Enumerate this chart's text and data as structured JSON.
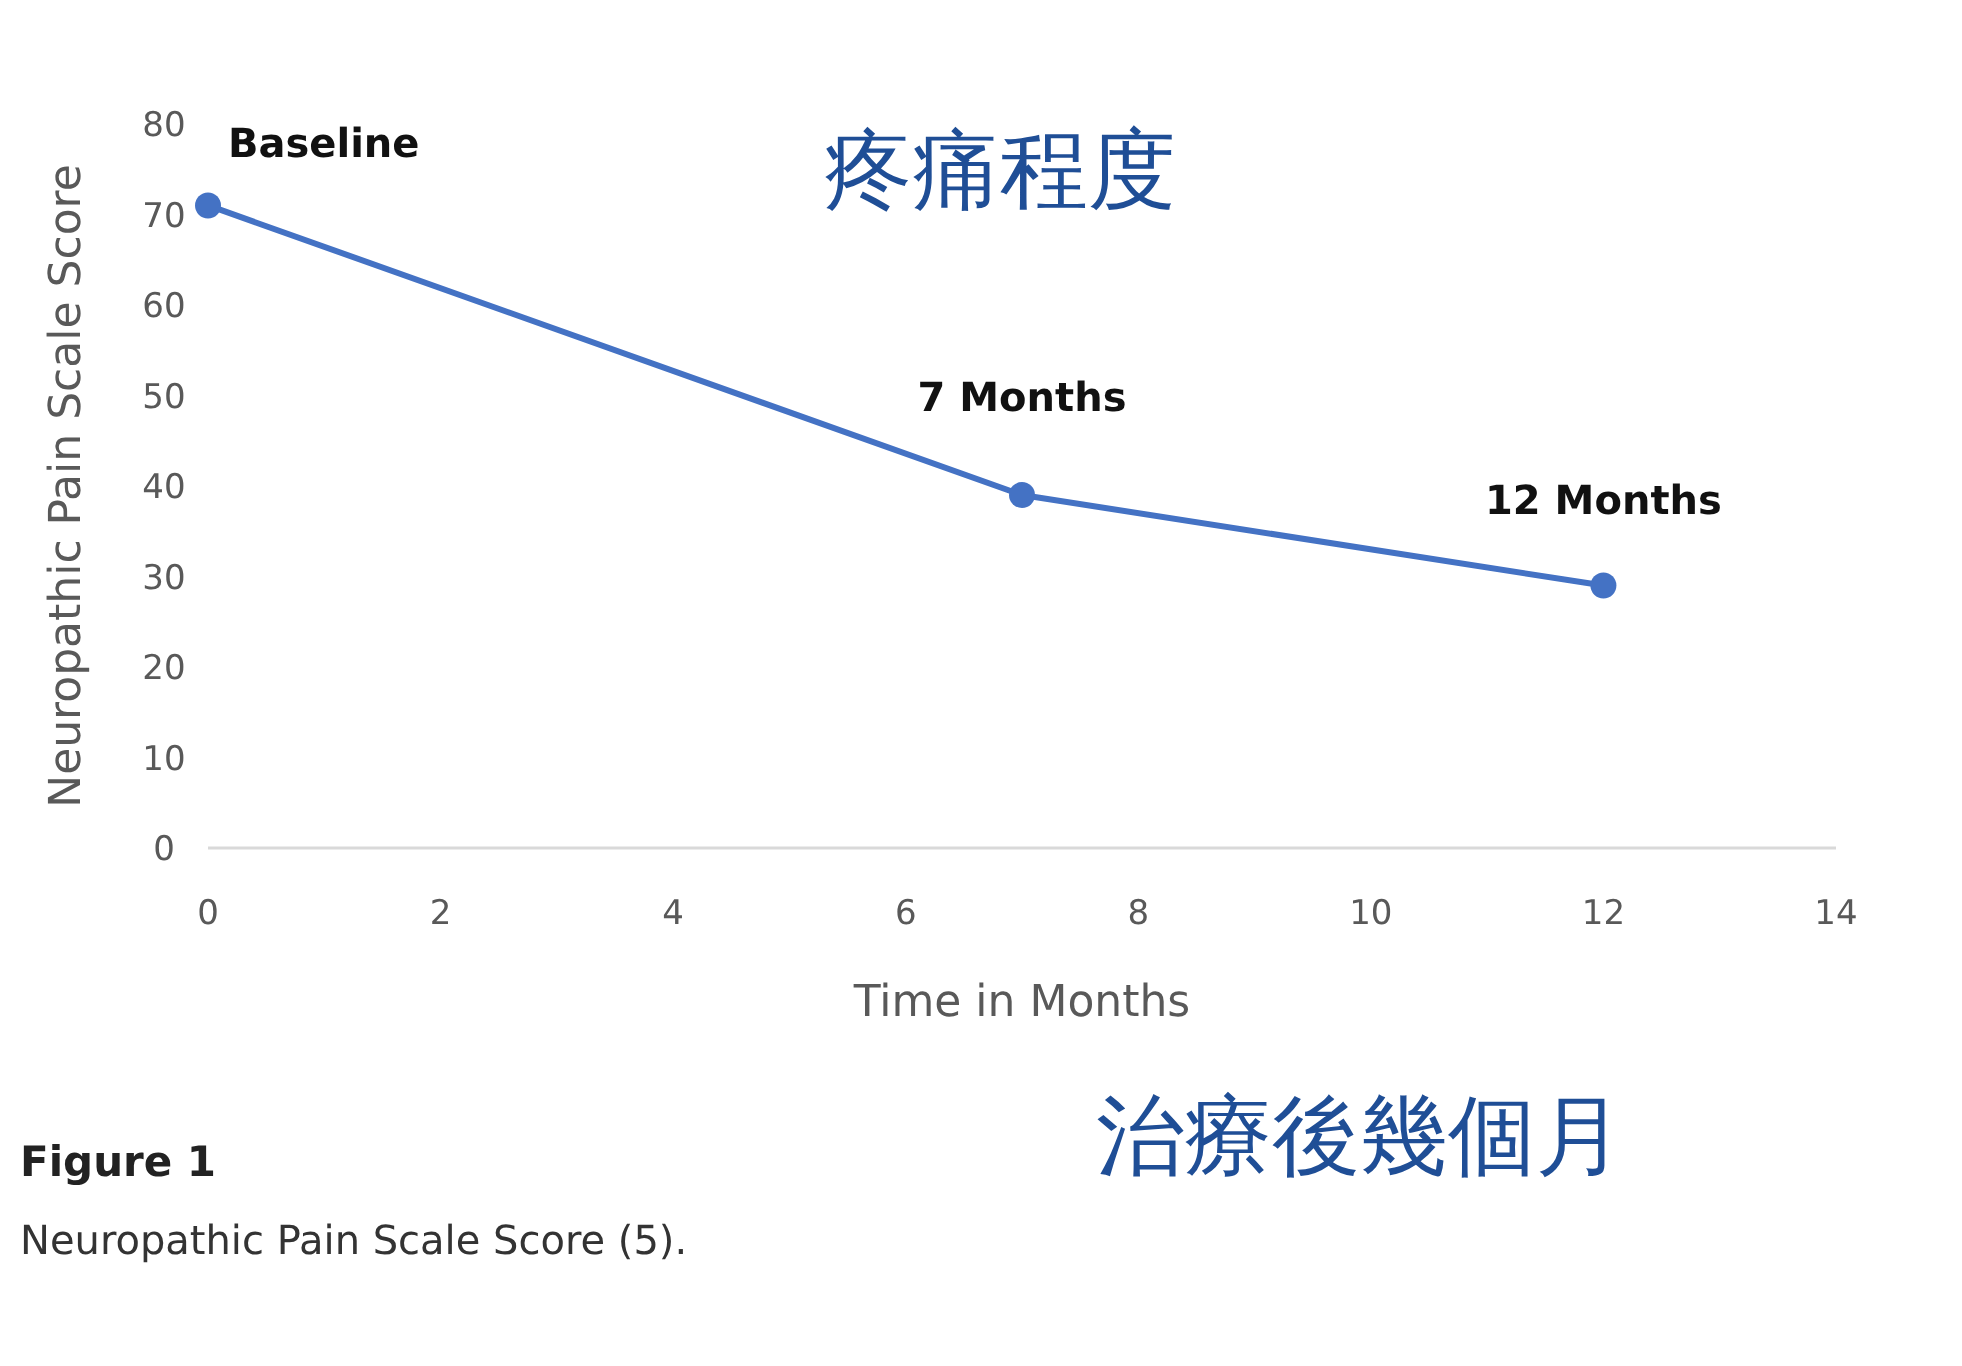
{
  "chart_data": {
    "type": "line",
    "xlabel": "Time in Months",
    "ylabel": "Neuropathic Pain Scale Score",
    "x": [
      0,
      7,
      12
    ],
    "series": [
      {
        "color": "#4472c4",
        "values": [
          71,
          39,
          29
        ]
      }
    ],
    "xlim": [
      0,
      14
    ],
    "xticks": [
      0,
      2,
      4,
      6,
      8,
      10,
      12,
      14
    ],
    "ylim": [
      0,
      80
    ],
    "yticks": [
      0,
      10,
      20,
      30,
      40,
      50,
      60,
      70,
      80
    ],
    "grid": false,
    "marker": "circle",
    "line_style": "solid",
    "annotations": [
      {
        "text": "Baseline",
        "x": 0,
        "y": 71
      },
      {
        "text": "7 Months",
        "x": 7,
        "y": 39
      },
      {
        "text": "12 Months",
        "x": 12,
        "y": 29
      },
      "疼痛程度",
      "治療後幾個月",
      "Figure 1",
      "Neuropathic Pain Scale Score (5)."
    ]
  }
}
